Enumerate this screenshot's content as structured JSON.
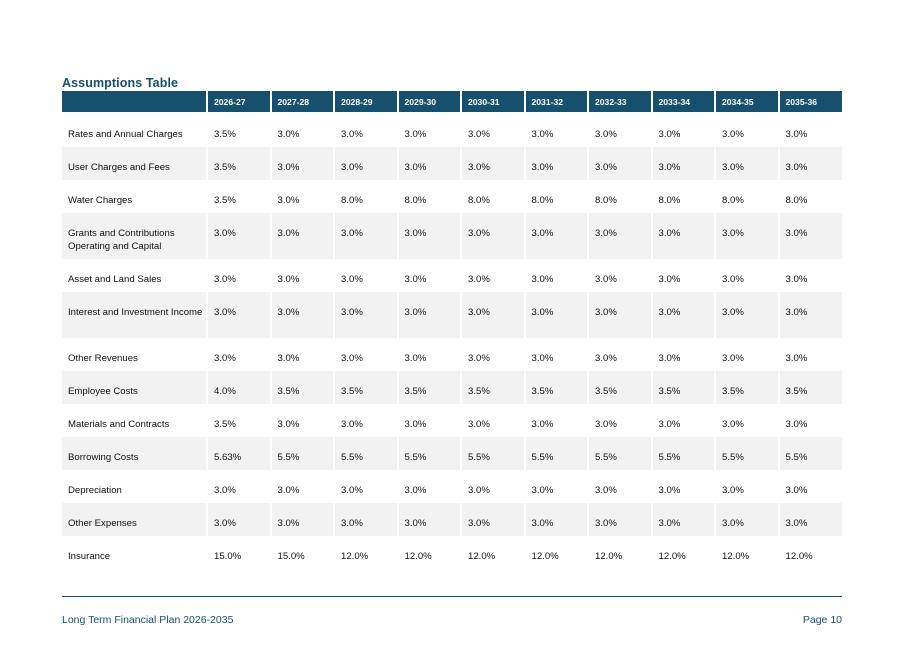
{
  "title": "Assumptions Table",
  "header": {
    "columns": [
      "",
      "2026-27",
      "2027-28",
      "2028-29",
      "2029-30",
      "2030-31",
      "2031-32",
      "2032-33",
      "2033-34",
      "2034-35",
      "2035-36"
    ]
  },
  "rows": [
    {
      "label": "Rates and Annual Charges",
      "values": [
        "3.5%",
        "3.0%",
        "3.0%",
        "3.0%",
        "3.0%",
        "3.0%",
        "3.0%",
        "3.0%",
        "3.0%",
        "3.0%"
      ]
    },
    {
      "label": "User Charges and Fees",
      "values": [
        "3.5%",
        "3.0%",
        "3.0%",
        "3.0%",
        "3.0%",
        "3.0%",
        "3.0%",
        "3.0%",
        "3.0%",
        "3.0%"
      ]
    },
    {
      "label": "Water Charges",
      "values": [
        "3.5%",
        "3.0%",
        "8.0%",
        "8.0%",
        "8.0%",
        "8.0%",
        "8.0%",
        "8.0%",
        "8.0%",
        "8.0%"
      ]
    },
    {
      "label": "Grants and Contributions Operating and Capital",
      "values": [
        "3.0%",
        "3.0%",
        "3.0%",
        "3.0%",
        "3.0%",
        "3.0%",
        "3.0%",
        "3.0%",
        "3.0%",
        "3.0%"
      ]
    },
    {
      "label": "Asset and Land Sales",
      "values": [
        "3.0%",
        "3.0%",
        "3.0%",
        "3.0%",
        "3.0%",
        "3.0%",
        "3.0%",
        "3.0%",
        "3.0%",
        "3.0%"
      ]
    },
    {
      "label": "Interest and Investment Income",
      "values": [
        "3.0%",
        "3.0%",
        "3.0%",
        "3.0%",
        "3.0%",
        "3.0%",
        "3.0%",
        "3.0%",
        "3.0%",
        "3.0%"
      ]
    },
    {
      "label": "Other Revenues",
      "values": [
        "3.0%",
        "3.0%",
        "3.0%",
        "3.0%",
        "3.0%",
        "3.0%",
        "3.0%",
        "3.0%",
        "3.0%",
        "3.0%"
      ]
    },
    {
      "label": "Employee Costs",
      "values": [
        "4.0%",
        "3.5%",
        "3.5%",
        "3.5%",
        "3.5%",
        "3.5%",
        "3.5%",
        "3.5%",
        "3.5%",
        "3.5%"
      ]
    },
    {
      "label": "Materials and Contracts",
      "values": [
        "3.5%",
        "3.0%",
        "3.0%",
        "3.0%",
        "3.0%",
        "3.0%",
        "3.0%",
        "3.0%",
        "3.0%",
        "3.0%"
      ]
    },
    {
      "label": "Borrowing Costs",
      "values": [
        "5.63%",
        "5.5%",
        "5.5%",
        "5.5%",
        "5.5%",
        "5.5%",
        "5.5%",
        "5.5%",
        "5.5%",
        "5.5%"
      ]
    },
    {
      "label": "Depreciation",
      "values": [
        "3.0%",
        "3.0%",
        "3.0%",
        "3.0%",
        "3.0%",
        "3.0%",
        "3.0%",
        "3.0%",
        "3.0%",
        "3.0%"
      ]
    },
    {
      "label": "Other Expenses",
      "values": [
        "3.0%",
        "3.0%",
        "3.0%",
        "3.0%",
        "3.0%",
        "3.0%",
        "3.0%",
        "3.0%",
        "3.0%",
        "3.0%"
      ]
    },
    {
      "label": "Insurance",
      "values": [
        "15.0%",
        "15.0%",
        "12.0%",
        "12.0%",
        "12.0%",
        "12.0%",
        "12.0%",
        "12.0%",
        "12.0%",
        "12.0%"
      ]
    }
  ],
  "footer": {
    "left": "Long Term Financial Plan 2026-2035",
    "right": "Page 10"
  },
  "colors": {
    "accent": "#16506e",
    "row_shade": "#f2f2f2"
  }
}
